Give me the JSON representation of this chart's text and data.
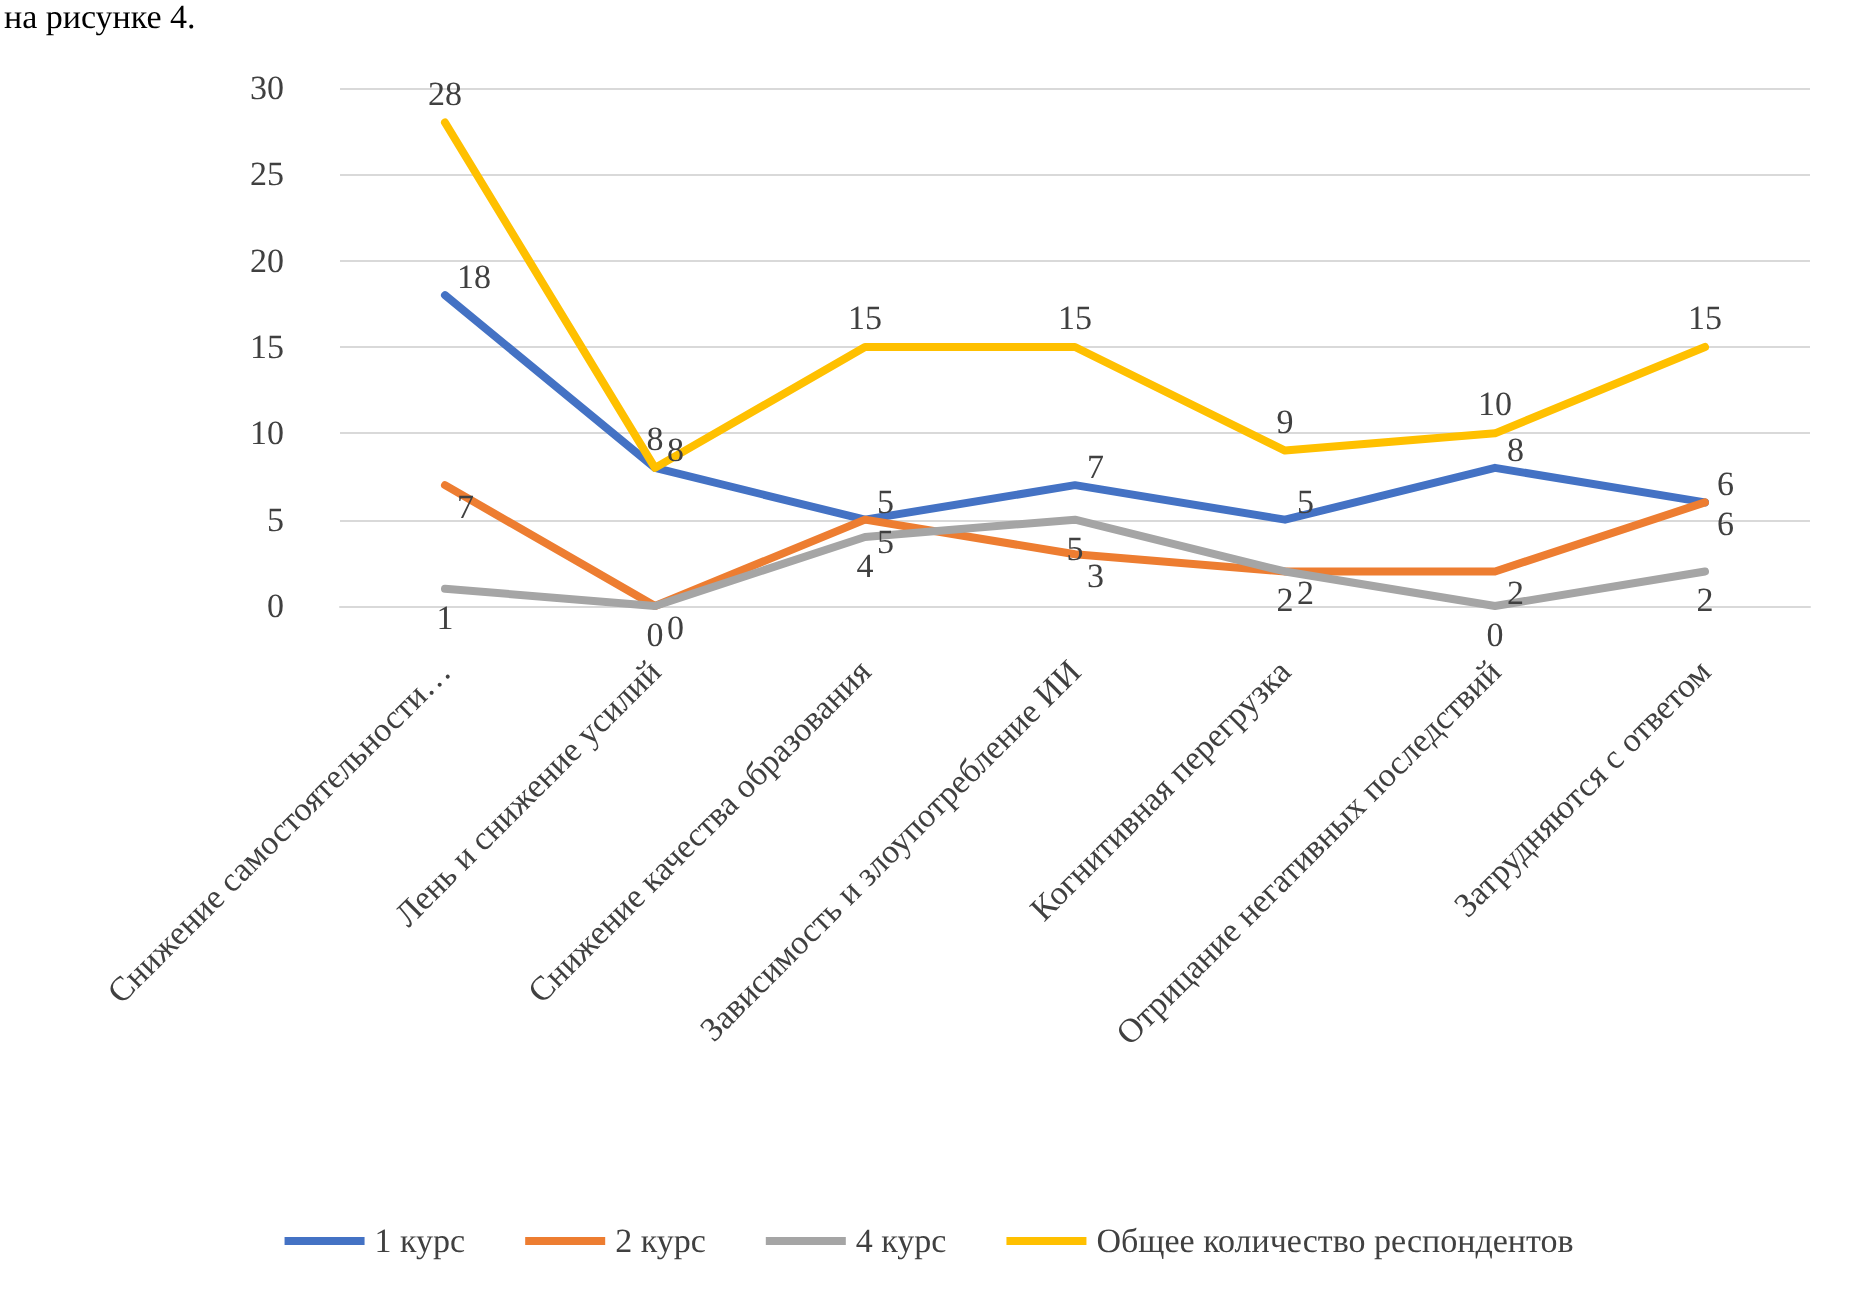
{
  "chart_data": {
    "type": "line",
    "annotations": [
      "на рисунке 4."
    ],
    "categories": [
      "Снижение самостоятельности…",
      "Лень и снижение усилий",
      "Снижение качества образования",
      "Зависимость и злоупотребление ИИ",
      "Когнитивная перегрузка",
      "Отрицание негативных последствий",
      "Затрудняются с ответом"
    ],
    "series": [
      {
        "name": "1 курс",
        "color": "#4472c4",
        "values": [
          18,
          8,
          5,
          7,
          5,
          8,
          6
        ]
      },
      {
        "name": "2 курс",
        "color": "#ed7d31",
        "values": [
          7,
          0,
          5,
          3,
          2,
          2,
          6
        ]
      },
      {
        "name": "4 курс",
        "color": "#a5a5a5",
        "values": [
          1,
          0,
          4,
          5,
          2,
          0,
          2
        ]
      },
      {
        "name": "Общее количество респондентов",
        "color": "#ffc000",
        "values": [
          28,
          8,
          15,
          15,
          9,
          10,
          15
        ]
      }
    ],
    "ylim": [
      0,
      30
    ],
    "yticks": [
      0,
      5,
      10,
      15,
      20,
      25,
      30
    ],
    "grid": "y",
    "legend": "bottom",
    "marker": "none",
    "line_style": "solid",
    "data_labels": true
  }
}
